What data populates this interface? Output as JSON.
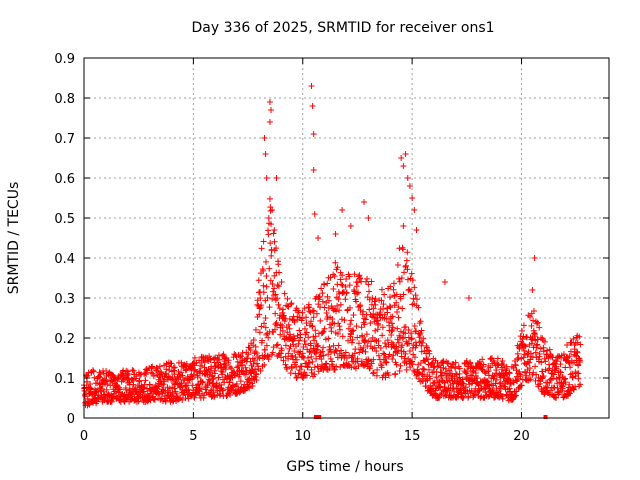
{
  "chart_data": {
    "type": "scatter",
    "title": "Day 336 of 2025, SRMTID for receiver ons1",
    "xlabel": "GPS time / hours",
    "ylabel": "SRMTID / TECUs",
    "xlim": [
      0,
      24
    ],
    "ylim": [
      0,
      0.9
    ],
    "xticks": [
      0,
      5,
      10,
      15,
      20
    ],
    "yticks": [
      0,
      0.1,
      0.2,
      0.3,
      0.4,
      0.5,
      0.6,
      0.7,
      0.8,
      0.9
    ],
    "ytick_labels": [
      "0",
      "0.1",
      "0.2",
      "0.3",
      "0.4",
      "0.5",
      "0.6",
      "0.7",
      "0.8",
      "0.9"
    ],
    "grid": true,
    "series_color": "#ff0000",
    "marker": "plus",
    "envelope": [
      [
        0.0,
        0.03,
        0.12
      ],
      [
        1.0,
        0.04,
        0.12
      ],
      [
        2.0,
        0.04,
        0.12
      ],
      [
        3.0,
        0.04,
        0.13
      ],
      [
        4.0,
        0.04,
        0.14
      ],
      [
        5.0,
        0.05,
        0.15
      ],
      [
        6.0,
        0.05,
        0.16
      ],
      [
        7.0,
        0.06,
        0.17
      ],
      [
        7.8,
        0.08,
        0.2
      ],
      [
        8.1,
        0.12,
        0.45
      ],
      [
        8.5,
        0.15,
        0.55
      ],
      [
        9.0,
        0.15,
        0.35
      ],
      [
        9.5,
        0.1,
        0.3
      ],
      [
        10.0,
        0.1,
        0.28
      ],
      [
        10.5,
        0.1,
        0.3
      ],
      [
        11.0,
        0.12,
        0.35
      ],
      [
        11.5,
        0.12,
        0.4
      ],
      [
        12.0,
        0.13,
        0.38
      ],
      [
        12.5,
        0.12,
        0.36
      ],
      [
        13.0,
        0.12,
        0.35
      ],
      [
        13.5,
        0.1,
        0.32
      ],
      [
        14.0,
        0.1,
        0.33
      ],
      [
        14.5,
        0.12,
        0.45
      ],
      [
        15.0,
        0.12,
        0.4
      ],
      [
        15.5,
        0.08,
        0.2
      ],
      [
        16.0,
        0.05,
        0.15
      ],
      [
        17.0,
        0.05,
        0.14
      ],
      [
        18.0,
        0.05,
        0.15
      ],
      [
        19.0,
        0.05,
        0.15
      ],
      [
        19.6,
        0.04,
        0.14
      ],
      [
        20.0,
        0.08,
        0.22
      ],
      [
        20.5,
        0.1,
        0.28
      ],
      [
        21.0,
        0.06,
        0.2
      ],
      [
        21.5,
        0.05,
        0.15
      ],
      [
        22.0,
        0.05,
        0.18
      ],
      [
        22.7,
        0.08,
        0.22
      ]
    ],
    "outliers": [
      [
        8.25,
        0.7
      ],
      [
        8.3,
        0.66
      ],
      [
        8.35,
        0.6
      ],
      [
        8.5,
        0.79
      ],
      [
        8.55,
        0.77
      ],
      [
        8.5,
        0.74
      ],
      [
        8.45,
        0.5
      ],
      [
        8.6,
        0.52
      ],
      [
        8.8,
        0.6
      ],
      [
        8.7,
        0.47
      ],
      [
        10.4,
        0.83
      ],
      [
        10.45,
        0.78
      ],
      [
        10.5,
        0.71
      ],
      [
        10.5,
        0.62
      ],
      [
        10.55,
        0.51
      ],
      [
        10.7,
        0.45
      ],
      [
        11.5,
        0.46
      ],
      [
        11.8,
        0.52
      ],
      [
        12.2,
        0.48
      ],
      [
        12.8,
        0.54
      ],
      [
        13.0,
        0.5
      ],
      [
        14.5,
        0.65
      ],
      [
        14.6,
        0.63
      ],
      [
        14.7,
        0.66
      ],
      [
        14.8,
        0.6
      ],
      [
        14.9,
        0.58
      ],
      [
        15.0,
        0.55
      ],
      [
        15.1,
        0.52
      ],
      [
        14.6,
        0.48
      ],
      [
        15.2,
        0.47
      ],
      [
        16.5,
        0.34
      ],
      [
        17.6,
        0.3
      ],
      [
        20.6,
        0.4
      ],
      [
        20.5,
        0.32
      ]
    ],
    "zero_marks": [
      10.6,
      10.75,
      21.1
    ]
  }
}
